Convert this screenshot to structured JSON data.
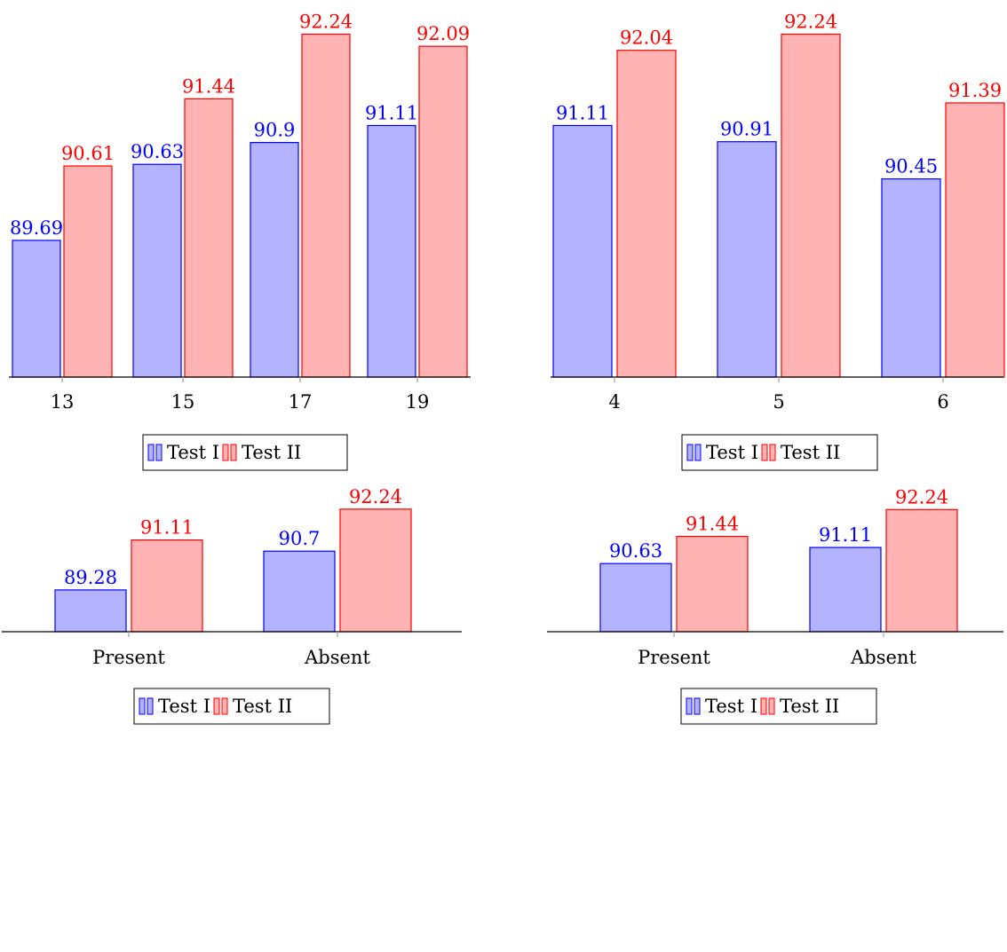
{
  "colors": {
    "series1_fill": "#b3b3ff",
    "series1_stroke": "#0000ff",
    "series1_label": "#0000ff",
    "series2_fill": "#ffb3b3",
    "series2_stroke": "#ff0000",
    "series2_label": "#ff0000"
  },
  "chart_data": [
    {
      "type": "bar",
      "categories": [
        "13",
        "15",
        "17",
        "19"
      ],
      "series": [
        {
          "name": "Test I",
          "values": [
            89.69,
            90.63,
            90.9,
            91.11
          ]
        },
        {
          "name": "Test II",
          "values": [
            90.61,
            91.44,
            92.24,
            92.09
          ]
        }
      ],
      "title": "",
      "xlabel": "",
      "ylabel": "",
      "ylim": [
        88.0,
        92.3
      ],
      "grid": false,
      "legend": "bottom"
    },
    {
      "type": "bar",
      "categories": [
        "4",
        "5",
        "6"
      ],
      "series": [
        {
          "name": "Test I",
          "values": [
            91.11,
            90.91,
            90.45
          ]
        },
        {
          "name": "Test II",
          "values": [
            92.04,
            92.24,
            91.39
          ]
        }
      ],
      "title": "",
      "xlabel": "",
      "ylabel": "",
      "ylim": [
        88.0,
        92.3
      ],
      "grid": false,
      "legend": "bottom"
    },
    {
      "type": "bar",
      "categories": [
        "Present",
        "Absent"
      ],
      "series": [
        {
          "name": "Test I",
          "values": [
            89.28,
            90.7
          ]
        },
        {
          "name": "Test II",
          "values": [
            91.11,
            92.24
          ]
        }
      ],
      "title": "",
      "xlabel": "",
      "ylabel": "",
      "ylim": [
        87.75,
        92.3
      ],
      "grid": false,
      "legend": "bottom"
    },
    {
      "type": "bar",
      "categories": [
        "Present",
        "Absent"
      ],
      "series": [
        {
          "name": "Test I",
          "values": [
            90.63,
            91.11
          ]
        },
        {
          "name": "Test II",
          "values": [
            91.44,
            92.24
          ]
        }
      ],
      "title": "",
      "xlabel": "",
      "ylabel": "",
      "ylim": [
        88.6,
        92.3
      ],
      "grid": false,
      "legend": "bottom"
    }
  ]
}
